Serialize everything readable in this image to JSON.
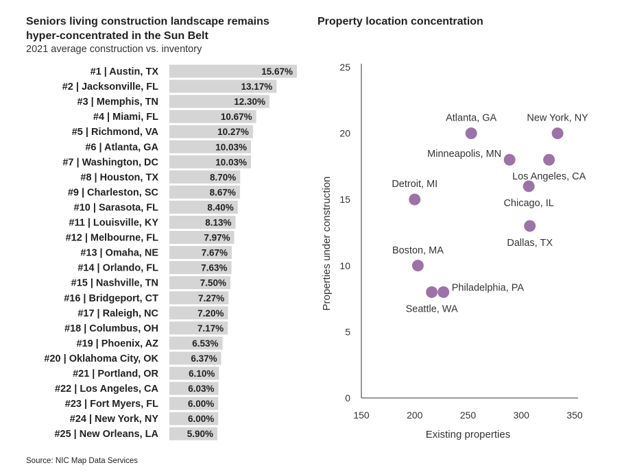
{
  "left_title_line1": "Seniors living construction landscape remains",
  "left_title_line2": "hyper-concentrated in the Sun Belt",
  "left_subtitle": "2021 average construction vs. inventory",
  "right_title": "Property location concentration",
  "source": "Source: NIC Map Data Services",
  "colors": {
    "bar": "#d5d5d5",
    "dot": "#9d72a8",
    "axis": "#333333"
  },
  "chart_data": [
    {
      "type": "bar",
      "orientation": "horizontal",
      "categories": [
        "#1 | Austin, TX",
        "#2 | Jacksonville, FL",
        "#3 | Memphis, TN",
        "#4 | Miami, FL",
        "#5 | Richmond, VA",
        "#6 | Atlanta, GA",
        "#7 | Washington, DC",
        "#8 | Houston, TX",
        "#9 | Charleston, SC",
        "#10 | Sarasota, FL",
        "#11 | Louisville, KY",
        "#12 | Melbourne, FL",
        "#13 | Omaha, NE",
        "#14 | Orlando, FL",
        "#15 | Nashville, TN",
        "#16 | Bridgeport, CT",
        "#17 | Raleigh, NC",
        "#18 | Columbus, OH",
        "#19 | Phoenix, AZ",
        "#20 | Oklahoma City, OK",
        "#21 | Portland, OR",
        "#22 | Los Angeles, CA",
        "#23 | Fort Myers, FL",
        "#24 | New York, NY",
        "#25 | New Orleans, LA"
      ],
      "values": [
        15.67,
        13.17,
        12.3,
        10.67,
        10.27,
        10.03,
        10.03,
        8.7,
        8.67,
        8.4,
        8.13,
        7.97,
        7.67,
        7.63,
        7.5,
        7.27,
        7.2,
        7.17,
        6.53,
        6.37,
        6.1,
        6.03,
        6.0,
        6.0,
        5.9
      ],
      "labels": [
        "15.67%",
        "13.17%",
        "12.30%",
        "10.67%",
        "10.27%",
        "10.03%",
        "10.03%",
        "8.70%",
        "8.67%",
        "8.40%",
        "8.13%",
        "7.97%",
        "7.67%",
        "7.63%",
        "7.50%",
        "7.27%",
        "7.20%",
        "7.17%",
        "6.53%",
        "6.37%",
        "6.10%",
        "6.03%",
        "6.00%",
        "6.00%",
        "5.90%"
      ],
      "title": "Seniors living construction landscape remains hyper-concentrated in the Sun Belt",
      "subtitle": "2021 average construction vs. inventory",
      "xlim": [
        0,
        15.67
      ]
    },
    {
      "type": "scatter",
      "title": "Property location concentration",
      "xlabel": "Existing properties",
      "ylabel": "Properties under construction",
      "xlim": [
        150,
        350
      ],
      "ylim": [
        0,
        25
      ],
      "xticks": [
        150,
        200,
        250,
        300,
        350
      ],
      "yticks": [
        0,
        5,
        10,
        15,
        20,
        25
      ],
      "points": [
        {
          "name": "Atlanta, GA",
          "x": 253,
          "y": 20,
          "label_pos": "above"
        },
        {
          "name": "New York, NY",
          "x": 334,
          "y": 20,
          "label_pos": "above"
        },
        {
          "name": "Minneapolis, MN",
          "x": 289,
          "y": 18,
          "label_pos": "left"
        },
        {
          "name": "Los Angeles, CA",
          "x": 326,
          "y": 18,
          "label_pos": "below"
        },
        {
          "name": "Chicago, IL",
          "x": 307,
          "y": 16,
          "label_pos": "below"
        },
        {
          "name": "Detroit, MI",
          "x": 200,
          "y": 15,
          "label_pos": "above"
        },
        {
          "name": "Dallas, TX",
          "x": 308,
          "y": 13,
          "label_pos": "below"
        },
        {
          "name": "Boston, MA",
          "x": 203,
          "y": 10,
          "label_pos": "above"
        },
        {
          "name": "Seattle, WA",
          "x": 216,
          "y": 8,
          "label_pos": "below"
        },
        {
          "name": "Philadelphia, PA",
          "x": 227,
          "y": 8,
          "label_pos": "right"
        }
      ]
    }
  ]
}
